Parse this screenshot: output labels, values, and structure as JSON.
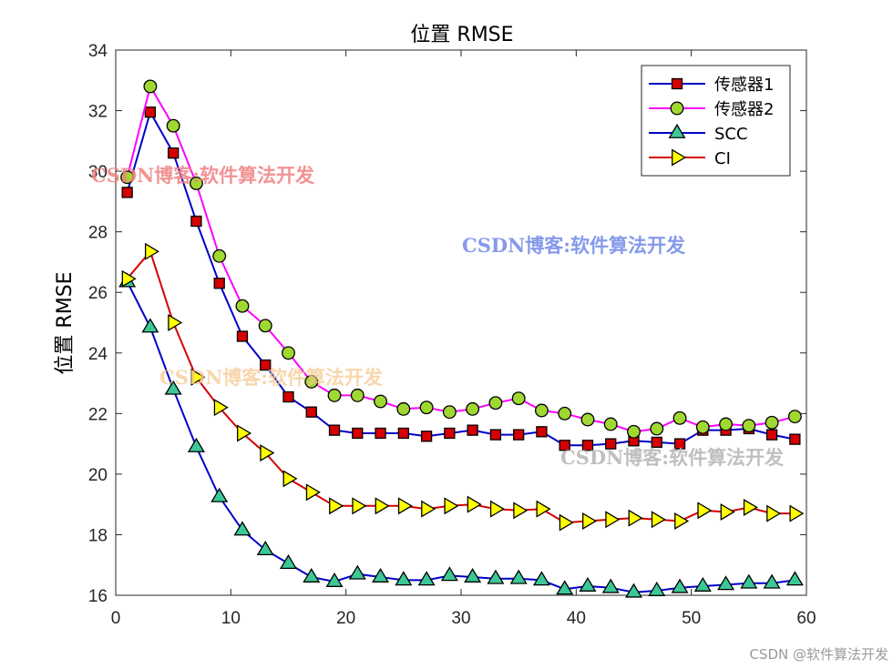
{
  "chart_data": {
    "type": "line",
    "title": "位置 RMSE",
    "xlabel": "",
    "ylabel": "位置 RMSE",
    "xlim": [
      0,
      60
    ],
    "ylim": [
      16,
      34
    ],
    "xticks": [
      0,
      10,
      20,
      30,
      40,
      50,
      60
    ],
    "yticks": [
      16,
      18,
      20,
      22,
      24,
      26,
      28,
      30,
      32,
      34
    ],
    "x": [
      1,
      3,
      5,
      7,
      9,
      11,
      13,
      15,
      17,
      19,
      21,
      23,
      25,
      27,
      29,
      31,
      33,
      35,
      37,
      39,
      41,
      43,
      45,
      47,
      49,
      51,
      53,
      55,
      57,
      59
    ],
    "legend_position": "top-right",
    "grid": false,
    "series": [
      {
        "name": "传感器1",
        "line_color": "#0000c8",
        "marker": "square",
        "marker_fill": "#d40000",
        "values": [
          29.3,
          31.95,
          30.6,
          28.35,
          26.3,
          24.55,
          23.6,
          22.55,
          22.05,
          21.45,
          21.35,
          21.35,
          21.35,
          21.25,
          21.35,
          21.45,
          21.3,
          21.3,
          21.4,
          20.95,
          20.95,
          21.0,
          21.1,
          21.05,
          21.0,
          21.45,
          21.45,
          21.5,
          21.3,
          21.15
        ]
      },
      {
        "name": "传感器2",
        "line_color": "#ff00ff",
        "marker": "circle",
        "marker_fill": "#a0d832",
        "values": [
          29.8,
          32.8,
          31.5,
          29.6,
          27.2,
          25.55,
          24.9,
          24.0,
          23.05,
          22.6,
          22.6,
          22.4,
          22.15,
          22.2,
          22.05,
          22.15,
          22.35,
          22.5,
          22.1,
          22.0,
          21.8,
          21.65,
          21.4,
          21.5,
          21.85,
          21.55,
          21.65,
          21.6,
          21.7,
          21.9
        ]
      },
      {
        "name": "SCC",
        "line_color": "#0000c8",
        "marker": "triangle-up",
        "marker_fill": "#3cc896",
        "values": [
          26.35,
          24.85,
          22.8,
          20.9,
          19.25,
          18.15,
          17.5,
          17.05,
          16.6,
          16.45,
          16.7,
          16.6,
          16.5,
          16.5,
          16.65,
          16.6,
          16.55,
          16.55,
          16.5,
          16.2,
          16.3,
          16.25,
          16.1,
          16.15,
          16.25,
          16.3,
          16.35,
          16.4,
          16.4,
          16.5
        ]
      },
      {
        "name": "CI",
        "line_color": "#d40000",
        "marker": "triangle-right",
        "marker_fill": "#ffff00",
        "values": [
          26.45,
          27.35,
          25.0,
          23.2,
          22.2,
          21.35,
          20.7,
          19.85,
          19.4,
          18.95,
          18.95,
          18.95,
          18.95,
          18.85,
          18.95,
          19.0,
          18.85,
          18.8,
          18.85,
          18.4,
          18.45,
          18.5,
          18.55,
          18.5,
          18.45,
          18.8,
          18.75,
          18.9,
          18.7,
          18.7
        ]
      }
    ]
  },
  "watermarks": [
    {
      "text": "CSDN博客:软件算法开发",
      "color": "#f08080"
    },
    {
      "text": "CSDN博客:软件算法开发",
      "color": "#7088e8"
    },
    {
      "text": "CSDN博客:软件算法开发",
      "color": "#f5c890"
    },
    {
      "text": "CSDN博客:软件算法开发",
      "color": "#b4b4b4"
    },
    {
      "text": "CSDN @软件算法开发",
      "color": "#9a9a9a"
    }
  ]
}
